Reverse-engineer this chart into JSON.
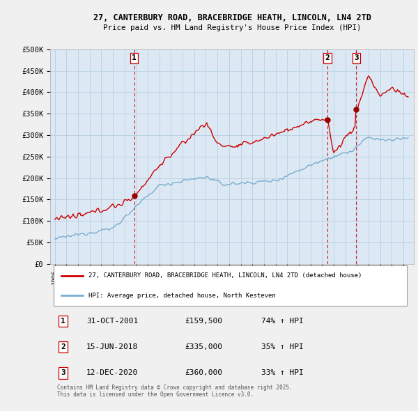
{
  "title_line1": "27, CANTERBURY ROAD, BRACEBRIDGE HEATH, LINCOLN, LN4 2TD",
  "title_line2": "Price paid vs. HM Land Registry's House Price Index (HPI)",
  "ylim": [
    0,
    500000
  ],
  "yticks": [
    0,
    50000,
    100000,
    150000,
    200000,
    250000,
    300000,
    350000,
    400000,
    450000,
    500000
  ],
  "ytick_labels": [
    "£0",
    "£50K",
    "£100K",
    "£150K",
    "£200K",
    "£250K",
    "£300K",
    "£350K",
    "£400K",
    "£450K",
    "£500K"
  ],
  "background_color": "#f0f0f0",
  "plot_bg_color": "#dce9f5",
  "grid_color": "#b8cfe0",
  "red_color": "#cc0000",
  "blue_color": "#7aadcf",
  "vline_color": "#cc0000",
  "transactions": [
    {
      "date_num": 2001.83,
      "price": 159500,
      "label": "1"
    },
    {
      "date_num": 2018.46,
      "price": 335000,
      "label": "2"
    },
    {
      "date_num": 2020.95,
      "price": 360000,
      "label": "3"
    }
  ],
  "legend_entries": [
    "27, CANTERBURY ROAD, BRACEBRIDGE HEATH, LINCOLN, LN4 2TD (detached house)",
    "HPI: Average price, detached house, North Kesteven"
  ],
  "table_rows": [
    {
      "num": "1",
      "date": "31-OCT-2001",
      "price": "£159,500",
      "change": "74% ↑ HPI"
    },
    {
      "num": "2",
      "date": "15-JUN-2018",
      "price": "£335,000",
      "change": "35% ↑ HPI"
    },
    {
      "num": "3",
      "date": "12-DEC-2020",
      "price": "£360,000",
      "change": "33% ↑ HPI"
    }
  ],
  "footnote": "Contains HM Land Registry data © Crown copyright and database right 2025.\nThis data is licensed under the Open Government Licence v3.0."
}
